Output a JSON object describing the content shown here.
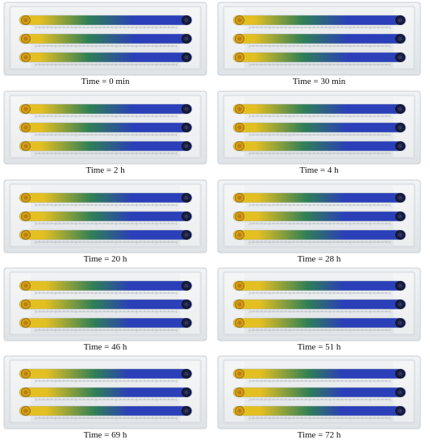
{
  "figure": {
    "panels": [
      {
        "caption": "Time = 0 min",
        "mix": 0.0
      },
      {
        "caption": "Time = 30 min",
        "mix": 0.06
      },
      {
        "caption": "Time = 2 h",
        "mix": 0.12
      },
      {
        "caption": "Time = 4 h",
        "mix": 0.18
      },
      {
        "caption": "Time = 20 h",
        "mix": 0.4
      },
      {
        "caption": "Time = 28 h",
        "mix": 0.48
      },
      {
        "caption": "Time = 46 h",
        "mix": 0.62
      },
      {
        "caption": "Time = 51 h",
        "mix": 0.66
      },
      {
        "caption": "Time = 69 h",
        "mix": 0.76
      },
      {
        "caption": "Time = 72 h",
        "mix": 0.78
      }
    ],
    "colors": {
      "yellow": "#e3bf22",
      "green": "#2f7f56",
      "blue": "#2a3fb8",
      "chip_background": "#e9ecee",
      "chip_border": "#c9cfd4",
      "channel_border": "#b5bcc2",
      "inlet": "#d79a18",
      "outlet": "#1a1d3a"
    }
  }
}
